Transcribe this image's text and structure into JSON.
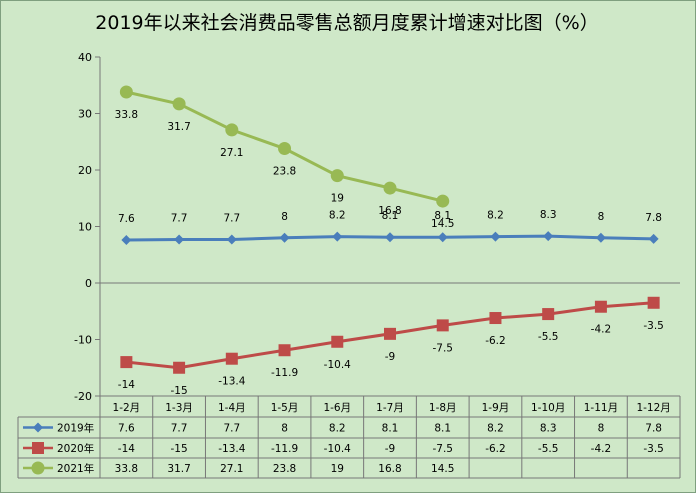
{
  "chart_data": {
    "type": "line",
    "title": "2019年以来社会消费品零售总额月度累计增速对比图（%）",
    "categories": [
      "1-2月",
      "1-3月",
      "1-4月",
      "1-5月",
      "1-6月",
      "1-7月",
      "1-8月",
      "1-9月",
      "1-10月",
      "1-11月",
      "1-12月"
    ],
    "ylim": [
      -20,
      40
    ],
    "yticks": [
      -20,
      -10,
      0,
      10,
      20,
      30,
      40
    ],
    "grid": false,
    "legend": "data-table",
    "series": [
      {
        "name": "2019年",
        "color": "#4a7ebb",
        "marker": "diamond",
        "values": [
          7.6,
          7.7,
          7.7,
          8,
          8.2,
          8.1,
          8.1,
          8.2,
          8.3,
          8,
          7.8
        ],
        "labels": [
          "7.6",
          "7.7",
          "7.7",
          "8",
          "8.2",
          "8.1",
          "8.1",
          "8.2",
          "8.3",
          "8",
          "7.8"
        ]
      },
      {
        "name": "2020年",
        "color": "#be4b48",
        "marker": "square",
        "values": [
          -14,
          -15,
          -13.4,
          -11.9,
          -10.4,
          -9,
          -7.5,
          -6.2,
          -5.5,
          -4.2,
          -3.5
        ],
        "labels": [
          "-14",
          "-15",
          "-13.4",
          "-11.9",
          "-10.4",
          "-9",
          "-7.5",
          "-6.2",
          "-5.5",
          "-4.2",
          "-3.5"
        ]
      },
      {
        "name": "2021年",
        "color": "#98b954",
        "marker": "circle",
        "values": [
          33.8,
          31.7,
          27.1,
          23.8,
          19,
          16.8,
          14.5,
          null,
          null,
          null,
          null
        ],
        "labels": [
          "33.8",
          "31.7",
          "27.1",
          "23.8",
          "19",
          "16.8",
          "14.5",
          "",
          "",
          "",
          ""
        ]
      }
    ]
  }
}
